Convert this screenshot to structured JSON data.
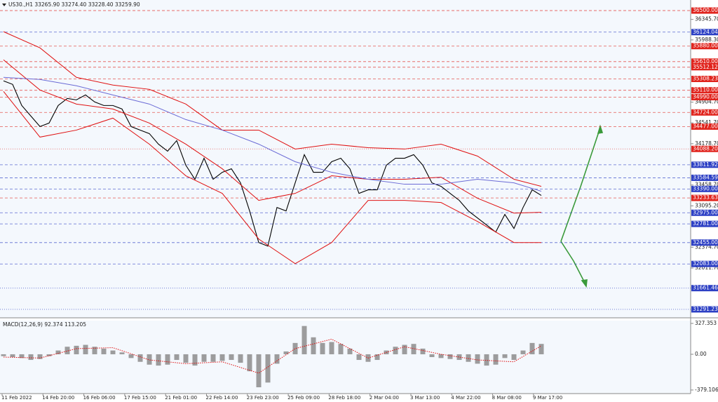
{
  "chart_data": [
    {
      "type": "line",
      "title": "US30.,H1 33265.90 33274.40 33228.40 33259.90",
      "x_labels": [
        "11 Feb 2022",
        "14 Feb 20:00",
        "16 Feb 06:00",
        "17 Feb 15:00",
        "21 Feb 01:00",
        "22 Feb 14:00",
        "23 Feb 23:00",
        "25 Feb 09:00",
        "28 Feb 18:00",
        "2 Mar 04:00",
        "3 Mar 13:00",
        "4 Mar 22:00",
        "8 Mar 08:00",
        "9 Mar 17:00"
      ],
      "ylim": [
        31144,
        36684
      ],
      "yticks": [
        {
          "value": 36345.7,
          "label": "36345.70"
        },
        {
          "value": 35988.3,
          "label": "35988.30"
        },
        {
          "value": 34904.7,
          "label": "34904.70"
        },
        {
          "value": 34541.7,
          "label": "34541.70"
        },
        {
          "value": 34178.7,
          "label": "34178.70"
        },
        {
          "value": 33458.7,
          "label": "33458.70"
        },
        {
          "value": 33095.2,
          "label": "33095.20"
        },
        {
          "value": 32374.7,
          "label": "32374.70"
        },
        {
          "value": 32011.7,
          "label": "32011.70"
        }
      ],
      "levels": [
        {
          "value": 36500,
          "label": "36500.00",
          "color": "#e0231c",
          "style": "dashed"
        },
        {
          "value": 36124.04,
          "label": "36124.04",
          "color": "#2c3fc4",
          "style": "dashed"
        },
        {
          "value": 35880,
          "label": "35880.00",
          "color": "#e0231c",
          "style": "dashed"
        },
        {
          "value": 35610,
          "label": "35610.00",
          "color": "#e0231c",
          "style": "dashed"
        },
        {
          "value": 35512.12,
          "label": "35512.12",
          "color": "#e0231c",
          "style": "dashed"
        },
        {
          "value": 35308.23,
          "label": "35308.23",
          "color": "#e0231c",
          "style": "dashed"
        },
        {
          "value": 35110,
          "label": "35110.00",
          "color": "#e0231c",
          "style": "dashed"
        },
        {
          "value": 34990,
          "label": "34990.00",
          "color": "#e0231c",
          "style": "dashed"
        },
        {
          "value": 34724,
          "label": "34724.00",
          "color": "#e0231c",
          "style": "dashed"
        },
        {
          "value": 34477,
          "label": "34477.00",
          "color": "#e0231c",
          "style": "dashed"
        },
        {
          "value": 34088.2,
          "label": "34088.20",
          "color": "#e0231c",
          "style": "dotted"
        },
        {
          "value": 33811.92,
          "label": "33811.92",
          "color": "#2c3fc4",
          "style": "dashed"
        },
        {
          "value": 33584.59,
          "label": "33584.59",
          "color": "#2c3fc4",
          "style": "dashed"
        },
        {
          "value": 33390,
          "label": "33390.00",
          "color": "#2c3fc4",
          "style": "dashed"
        },
        {
          "value": 33233.63,
          "label": "33233.63",
          "color": "#e0231c",
          "style": "dashed"
        },
        {
          "value": 32975,
          "label": "32975.00",
          "color": "#2c3fc4",
          "style": "dashed"
        },
        {
          "value": 32781,
          "label": "32781.00",
          "color": "#2c3fc4",
          "style": "dashed"
        },
        {
          "value": 32455,
          "label": "32455.00",
          "color": "#2c3fc4",
          "style": "dashed"
        },
        {
          "value": 32083,
          "label": "32083.00",
          "color": "#2c3fc4",
          "style": "dashed"
        },
        {
          "value": 31661.46,
          "label": "31661.46",
          "color": "#2c3fc4",
          "style": "dotted"
        },
        {
          "value": 31291.23,
          "label": "31291.23",
          "color": "#2c3fc4",
          "style": "dotted"
        }
      ],
      "series": [
        {
          "color": "#000000",
          "values": [
            35274,
            35213,
            34845,
            34662,
            34478,
            34539,
            34845,
            34968,
            34943,
            35029,
            34907,
            34845,
            34845,
            34784,
            34478,
            34416,
            34355,
            34171,
            34049,
            34233,
            33804,
            33559,
            33926,
            33559,
            33681,
            33742,
            33497,
            33007,
            32456,
            32394,
            33068,
            33007,
            33497,
            33988,
            33681,
            33681,
            33865,
            33926,
            33742,
            33313,
            33375,
            33375,
            33804,
            33926,
            33926,
            33988,
            33804,
            33497,
            33436,
            33313,
            33191,
            33007,
            32884,
            32762,
            32639,
            32946,
            32701,
            33068,
            33375,
            33277
          ]
        },
        {
          "color": "#e01010",
          "x": [
            0,
            4,
            8,
            12,
            16,
            20,
            24,
            28,
            32,
            36,
            40,
            44,
            48,
            52,
            56,
            59
          ],
          "values": [
            36132,
            35850,
            35336,
            35201,
            35127,
            34870,
            34416,
            34416,
            34086,
            34171,
            34110,
            34086,
            34171,
            33963,
            33559,
            33436
          ]
        },
        {
          "color": "#e01010",
          "x": [
            0,
            4,
            8,
            12,
            16,
            20,
            24,
            28,
            32,
            36,
            40,
            44,
            48,
            52,
            56,
            59
          ],
          "values": [
            35642,
            35115,
            34870,
            34784,
            34539,
            34171,
            33742,
            33191,
            33313,
            33620,
            33559,
            33559,
            33595,
            33228,
            32970,
            32983
          ]
        },
        {
          "color": "#e01010",
          "x": [
            0,
            4,
            8,
            12,
            16,
            20,
            24,
            28,
            32,
            36,
            40,
            44,
            48,
            52,
            56,
            59
          ],
          "values": [
            35091,
            34294,
            34416,
            34625,
            34171,
            33620,
            33313,
            32517,
            32088,
            32456,
            33191,
            33191,
            33154,
            32823,
            32456,
            32456
          ]
        },
        {
          "color": "#6b6bd6",
          "x": [
            0,
            4,
            8,
            12,
            16,
            20,
            24,
            28,
            32,
            36,
            40,
            44,
            48,
            52,
            56,
            59
          ],
          "values": [
            35336,
            35299,
            35189,
            35029,
            34870,
            34600,
            34416,
            34171,
            33865,
            33681,
            33559,
            33473,
            33473,
            33559,
            33497,
            33350
          ]
        }
      ]
    },
    {
      "type": "bar",
      "title": "MACD(12,26,9) 92.374 113.205",
      "ylim": [
        -417,
        357
      ],
      "yticks": [
        327.353,
        {
          "value": 0,
          "label": "0.00"
        },
        -379.106
      ],
      "color": "#8c8c8c",
      "values": [
        -20,
        -30,
        -40,
        -60,
        -50,
        -20,
        40,
        80,
        90,
        100,
        80,
        60,
        40,
        20,
        -40,
        -80,
        -110,
        -120,
        -110,
        -60,
        -90,
        -120,
        -80,
        -80,
        -70,
        -60,
        -90,
        -180,
        -350,
        -300,
        -100,
        30,
        120,
        300,
        180,
        120,
        130,
        110,
        60,
        -60,
        -80,
        -60,
        40,
        80,
        100,
        110,
        60,
        -30,
        -40,
        -50,
        -60,
        -80,
        -100,
        -120,
        -110,
        -40,
        -60,
        40,
        120,
        110
      ],
      "signal": {
        "color": "#e01010",
        "x": [
          0,
          4,
          8,
          12,
          16,
          20,
          24,
          28,
          32,
          36,
          40,
          44,
          48,
          52,
          56,
          59
        ],
        "values": [
          -30,
          -40,
          60,
          70,
          -60,
          -100,
          -80,
          -200,
          60,
          160,
          -40,
          80,
          0,
          -60,
          -80,
          90
        ]
      }
    }
  ]
}
